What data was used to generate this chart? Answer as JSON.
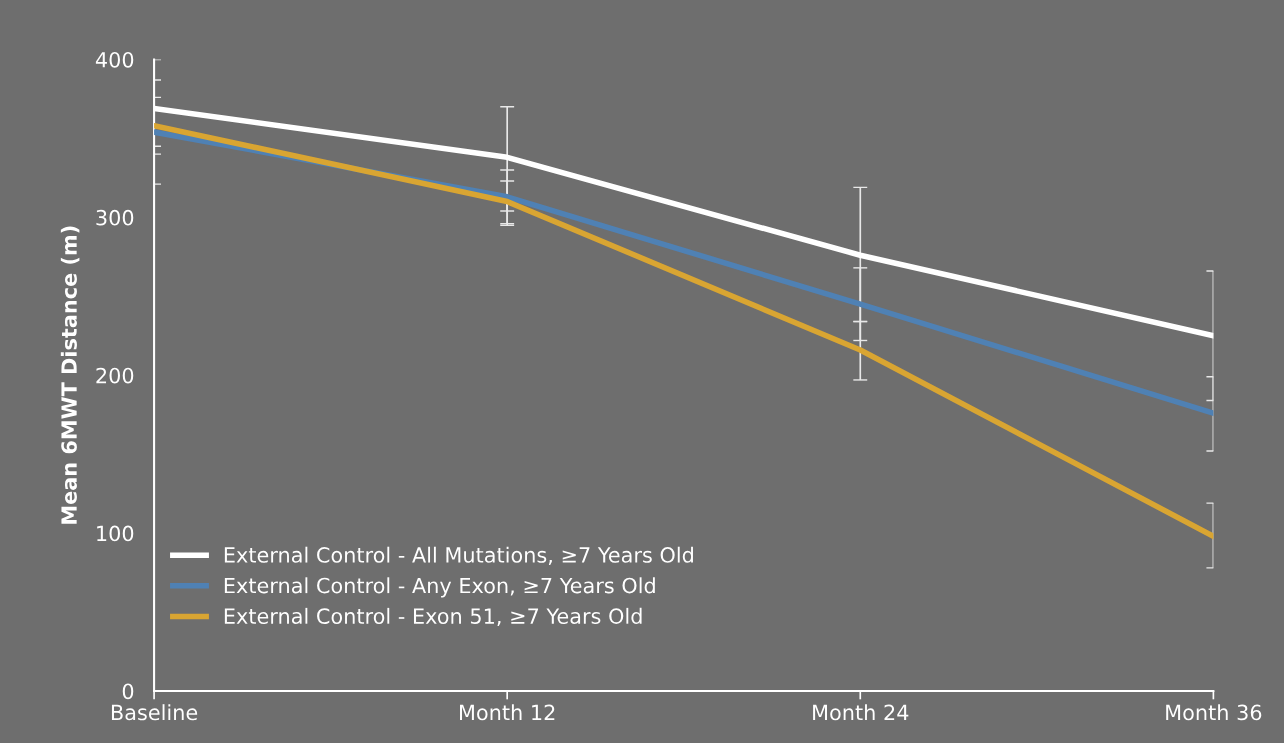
{
  "chart_data": {
    "type": "line",
    "ylabel": "Mean 6MWT Distance (m)",
    "categories": [
      "Baseline",
      "Month 12",
      "Month 24",
      "Month 36"
    ],
    "ylim": [
      0,
      400
    ],
    "yticks": [
      0,
      100,
      200,
      300,
      400
    ],
    "grid": false,
    "legend": "bottom left",
    "marker": "none",
    "line_style": "solid",
    "series": [
      {
        "name": "External Control - All Mutations, ≥7 Years Old",
        "color": "#ffffff",
        "values": [
          369,
          338,
          276,
          225
        ],
        "errors": [
          [
            345,
            400
          ],
          [
            304,
            370
          ],
          [
            234,
            319
          ],
          [
            184,
            266
          ]
        ]
      },
      {
        "name": "External Control - Any Exon, ≥7 Years Old",
        "color": "#4f81b4",
        "values": [
          354,
          313,
          245,
          176
        ],
        "errors": [
          [
            321,
            387
          ],
          [
            296,
            330
          ],
          [
            222,
            268
          ],
          [
            152,
            199
          ]
        ]
      },
      {
        "name": "External Control - Exon 51, ≥7 Years Old",
        "color": "#d9a532",
        "values": [
          358,
          310,
          216,
          98
        ],
        "errors": [
          [
            340,
            376
          ],
          [
            295,
            323
          ],
          [
            197,
            234
          ],
          [
            78,
            119
          ]
        ]
      }
    ]
  }
}
